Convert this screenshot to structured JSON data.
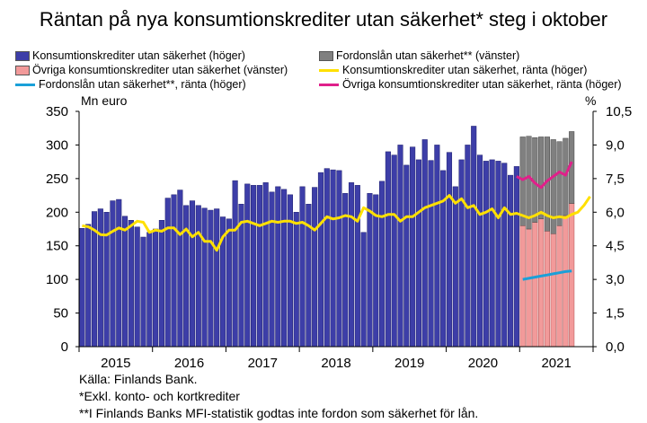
{
  "title": "Räntan på nya konsumtionskrediter utan säkerhet* steg i oktober",
  "legend": [
    {
      "label": "Konsumtionskrediter utan säkerhet (höger)",
      "kind": "bar",
      "color": "#3d3ea8"
    },
    {
      "label": "Fordonslån utan säkerhet** (vänster)",
      "kind": "bar",
      "color": "#808080"
    },
    {
      "label": "Övriga konsumtionskrediter utan säkerhet (vänster)",
      "kind": "bar",
      "color": "#f29a9a"
    },
    {
      "label": "Konsumtionskrediter utan säkerhet, ränta (höger)",
      "kind": "line",
      "color": "#ffe000"
    },
    {
      "label": "Fordonslån utan säkerhet**, ränta (höger)",
      "kind": "line",
      "color": "#1aa0d8"
    },
    {
      "label": "Övriga konsumtionskrediter utan säkerhet, ränta (höger)",
      "kind": "line",
      "color": "#e0208a"
    }
  ],
  "left_unit": "Mn euro",
  "right_unit": "%",
  "footnotes": [
    "Källa: Finlands Bank.",
    "*Exkl. konto- och kortkrediter",
    "**I Finlands Banks MFI-statistik godtas inte fordon som säkerhet för lån."
  ],
  "chart_data": {
    "type": "bar",
    "x_labels": [
      "2015",
      "2016",
      "2017",
      "2018",
      "2019",
      "2020",
      "2021"
    ],
    "y_left": {
      "ticks": [
        "0",
        "50",
        "100",
        "150",
        "200",
        "250",
        "300",
        "350"
      ],
      "min": 0,
      "max": 350
    },
    "y_right": {
      "ticks": [
        "0,0",
        "1,5",
        "3,0",
        "4,5",
        "6,0",
        "7,5",
        "9,0",
        "10,5"
      ],
      "min": 0,
      "max": 10.5
    },
    "x_start": "2015-01",
    "bars_total": {
      "name": "Konsumtionskrediter utan säkerhet (höger)",
      "values": [
        176,
        182,
        201,
        205,
        200,
        217,
        219,
        194,
        188,
        178,
        163,
        170,
        175,
        188,
        221,
        226,
        233,
        210,
        217,
        210,
        206,
        203,
        205,
        193,
        190,
        247,
        212,
        242,
        240,
        240,
        244,
        230,
        238,
        234,
        226,
        200,
        238,
        212,
        237,
        259,
        265,
        263,
        262,
        228,
        244,
        240,
        170,
        228,
        226,
        246,
        290,
        285,
        300,
        270,
        297,
        278,
        308,
        277,
        300,
        262,
        289,
        238,
        278,
        300,
        328,
        285,
        276,
        278,
        276,
        273,
        255,
        268
      ],
      "color": "#3d3ea8"
    },
    "bars_stacked_2021": {
      "names": [
        "Övriga konsumtionskrediter utan säkerhet (vänster)",
        "Fordonslån utan säkerhet** (vänster)"
      ],
      "months": [
        "2021-01",
        "2021-02",
        "2021-03",
        "2021-04",
        "2021-05",
        "2021-06",
        "2021-07",
        "2021-08",
        "2021-09"
      ],
      "ovriga": [
        180,
        175,
        185,
        190,
        172,
        168,
        180,
        195,
        213
      ],
      "fordon": [
        132,
        138,
        126,
        122,
        140,
        140,
        125,
        115,
        107
      ],
      "colors": [
        "#f29a9a",
        "#808080"
      ]
    },
    "lines": [
      {
        "name": "Konsumtionskrediter utan säkerhet, ränta (höger)",
        "color": "#ffe000",
        "values": [
          5.4,
          5.35,
          5.2,
          5.0,
          4.98,
          5.15,
          5.3,
          5.2,
          5.4,
          5.6,
          5.55,
          5.1,
          5.2,
          5.15,
          5.3,
          5.3,
          5.0,
          5.25,
          4.9,
          5.1,
          4.7,
          4.7,
          4.3,
          4.9,
          5.2,
          5.2,
          5.55,
          5.6,
          5.5,
          5.4,
          5.5,
          5.6,
          5.55,
          5.6,
          5.6,
          5.5,
          5.55,
          5.4,
          5.2,
          5.5,
          5.8,
          5.7,
          5.75,
          5.85,
          5.8,
          5.6,
          6.2,
          6.05,
          5.85,
          5.8,
          5.9,
          5.9,
          5.6,
          5.8,
          5.8,
          6.0,
          6.2,
          6.3,
          6.4,
          6.5,
          6.75,
          6.4,
          6.6,
          6.2,
          6.3,
          5.9,
          6.0,
          6.15,
          5.75,
          6.2,
          5.9,
          5.95,
          5.85,
          5.75,
          5.85,
          6.0,
          5.85,
          5.75,
          5.8,
          5.75,
          5.9,
          6.0,
          6.3,
          6.7
        ]
      },
      {
        "name": "Fordonslån utan säkerhet**, ränta (höger)",
        "color": "#1aa0d8",
        "values": [
          3.0,
          3.05,
          3.1,
          3.15,
          3.2,
          3.25,
          3.3,
          3.35,
          3.38
        ]
      },
      {
        "name": "Övriga konsumtionskrediter utan säkerhet, ränta (höger)",
        "color": "#e0208a",
        "values": [
          7.6,
          7.45,
          7.6,
          7.3,
          7.1,
          7.4,
          7.6,
          7.8,
          7.65,
          8.25
        ]
      }
    ]
  }
}
